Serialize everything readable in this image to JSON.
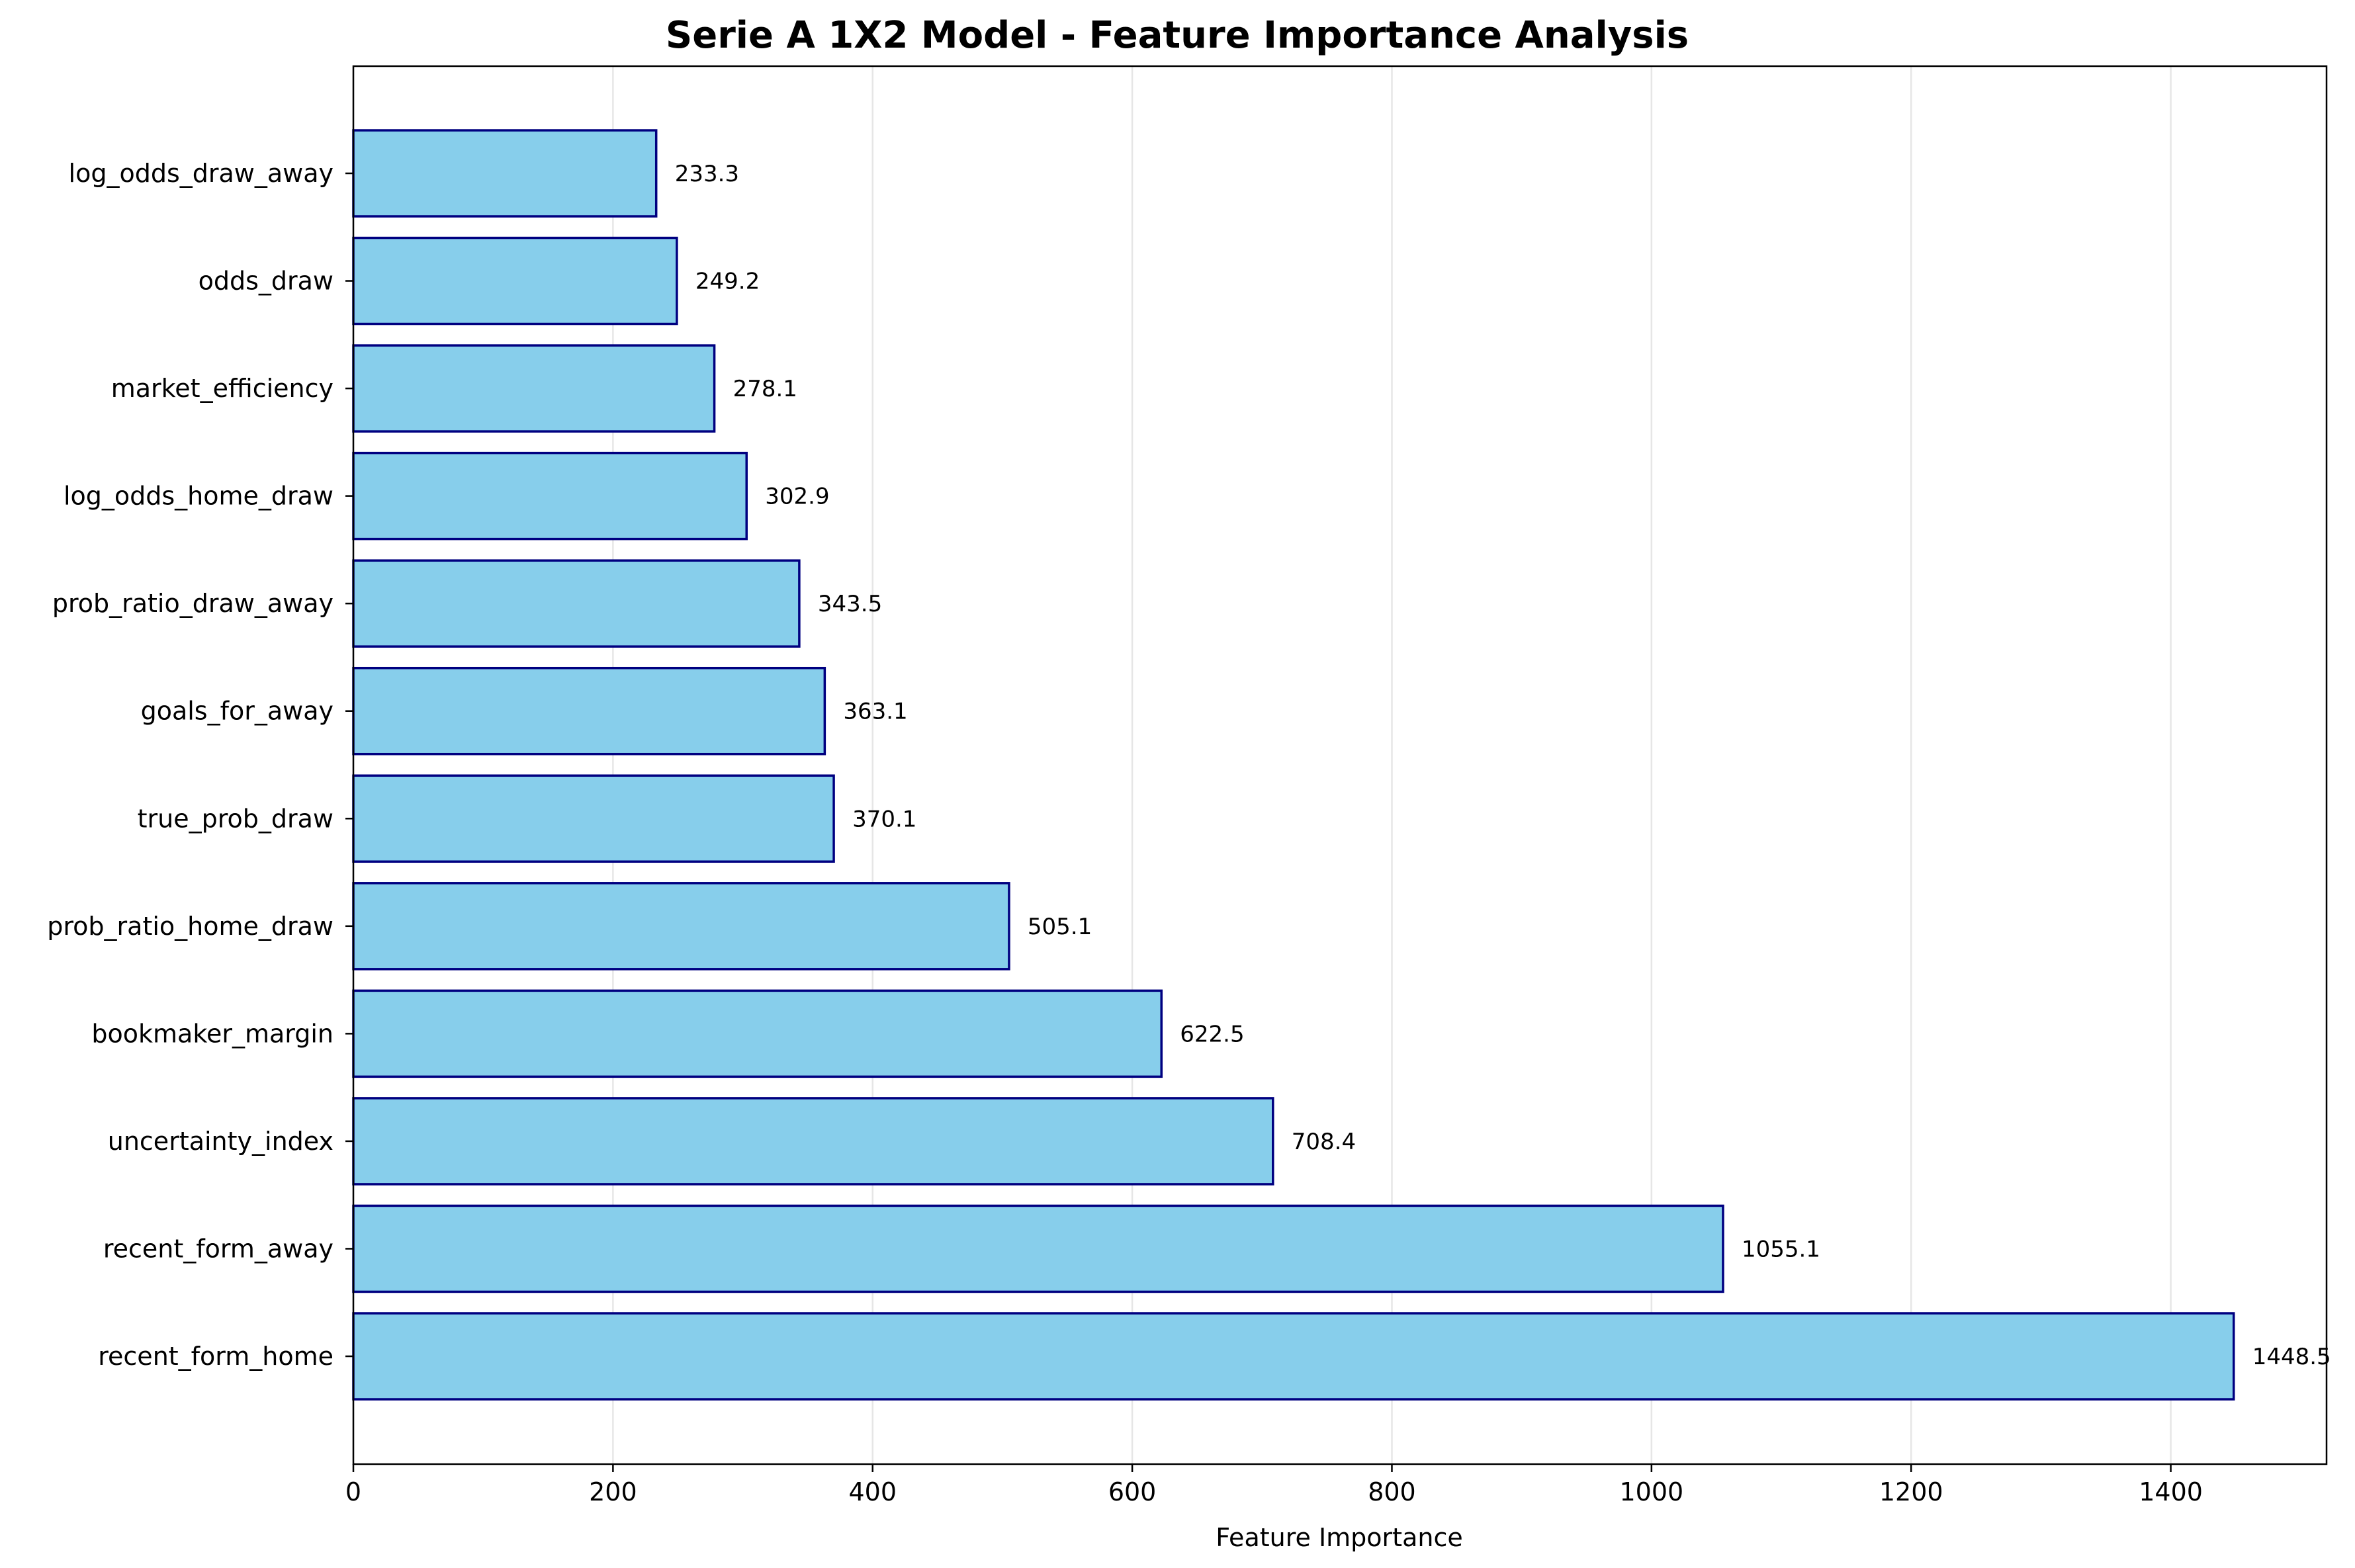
{
  "chart_data": {
    "type": "bar",
    "orientation": "horizontal",
    "title": "Serie A 1X2 Model - Feature Importance Analysis",
    "xlabel": "Feature Importance",
    "ylabel": "",
    "xlim": [
      0,
      1520
    ],
    "xticks": [
      0,
      200,
      400,
      600,
      800,
      1000,
      1200,
      1400
    ],
    "grid": {
      "x": true,
      "y": false
    },
    "categories": [
      "recent_form_home",
      "recent_form_away",
      "uncertainty_index",
      "bookmaker_margin",
      "prob_ratio_home_draw",
      "true_prob_draw",
      "goals_for_away",
      "prob_ratio_draw_away",
      "log_odds_home_draw",
      "market_efficiency",
      "odds_draw",
      "log_odds_draw_away"
    ],
    "values": [
      1448.5,
      1055.1,
      708.4,
      622.5,
      505.1,
      370.1,
      363.1,
      343.5,
      302.9,
      278.1,
      249.2,
      233.3
    ],
    "value_labels": [
      "1448.5",
      "1055.1",
      "708.4",
      "622.5",
      "505.1",
      "370.1",
      "363.1",
      "343.5",
      "302.9",
      "278.1",
      "249.2",
      "233.3"
    ],
    "colors": {
      "bar_fill": "#87CEEB",
      "bar_edge": "#000080",
      "grid": "#e6e6e6",
      "axes": "#000000"
    }
  }
}
